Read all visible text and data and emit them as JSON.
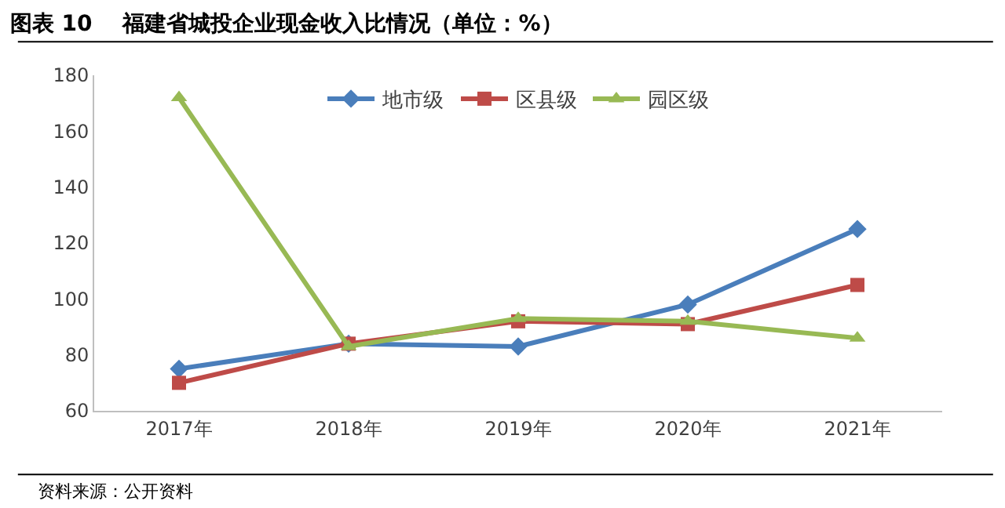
{
  "chart_data": {
    "type": "line",
    "title": "图表 10    福建省城投企业现金收入比情况（单位：%）",
    "categories": [
      "2017年",
      "2018年",
      "2019年",
      "2020年",
      "2021年"
    ],
    "series": [
      {
        "name": "地市级",
        "color": "#4a7ebb",
        "marker": "diamond",
        "values": [
          75,
          84,
          83,
          98,
          125
        ]
      },
      {
        "name": "区县级",
        "color": "#be4b48",
        "marker": "square",
        "values": [
          70,
          84,
          92,
          91,
          105
        ]
      },
      {
        "name": "园区级",
        "color": "#98b954",
        "marker": "triangle",
        "values": [
          172,
          83,
          93,
          92,
          86
        ]
      }
    ],
    "ylim": [
      60,
      180
    ],
    "yticks": [
      60,
      80,
      100,
      120,
      140,
      160,
      180
    ],
    "legend": "top",
    "annotations": [
      "资料来源：公开资料"
    ]
  }
}
